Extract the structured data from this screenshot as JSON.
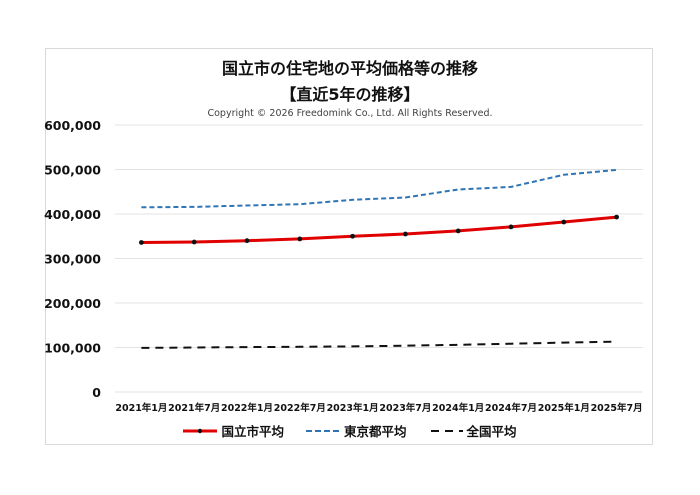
{
  "header": {
    "title_line1": "国立市の住宅地の平均価格等の推移",
    "title_line2": "【直近5年の推移】",
    "copyright": "Copyright © 2026 Freedomink Co., Ltd. All Rights Reserved."
  },
  "legend": [
    {
      "label": "国立市平均",
      "color": "#e00000",
      "style": "solid-marker"
    },
    {
      "label": "東京都平均",
      "color": "#2e75b6",
      "style": "dashed"
    },
    {
      "label": "全国平均",
      "color": "#111111",
      "style": "long-dash"
    }
  ],
  "y_ticks": [
    "600,000",
    "500,000",
    "400,000",
    "300,000",
    "200,000",
    "100,000",
    "0"
  ],
  "chart_data": {
    "type": "line",
    "title": "国立市の住宅地の平均価格等の推移 【直近5年の推移】",
    "subtitle": "Copyright © 2026 Freedomink Co., Ltd. All Rights Reserved.",
    "xlabel": "",
    "ylabel": "",
    "ylim": [
      0,
      600000
    ],
    "y_tick_step": 100000,
    "grid": true,
    "legend_position": "bottom",
    "categories": [
      "2021年1月",
      "2021年7月",
      "2022年1月",
      "2022年7月",
      "2023年1月",
      "2023年7月",
      "2024年1月",
      "2024年7月",
      "2025年1月",
      "2025年7月"
    ],
    "series": [
      {
        "name": "国立市平均",
        "color": "#e00000",
        "line": "solid",
        "marker": "dot",
        "values": [
          336000,
          337000,
          340000,
          344000,
          350000,
          355000,
          362000,
          371000,
          382000,
          393000
        ]
      },
      {
        "name": "東京都平均",
        "color": "#2e75b6",
        "line": "dashed",
        "values": [
          415000,
          416000,
          419000,
          422000,
          432000,
          437000,
          455000,
          461000,
          488000,
          499000
        ]
      },
      {
        "name": "全国平均",
        "color": "#111111",
        "line": "long-dash",
        "values": [
          99000,
          100000,
          101000,
          101500,
          102500,
          104000,
          106000,
          108500,
          111000,
          113000
        ]
      }
    ]
  }
}
